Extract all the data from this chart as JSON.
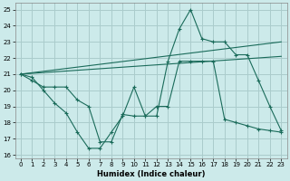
{
  "xlabel": "Humidex (Indice chaleur)",
  "background_color": "#cceaea",
  "grid_color": "#aacccc",
  "line_color": "#1a6b5a",
  "xlim": [
    -0.5,
    23.5
  ],
  "ylim": [
    15.8,
    25.4
  ],
  "yticks": [
    16,
    17,
    18,
    19,
    20,
    21,
    22,
    23,
    24,
    25
  ],
  "xticks": [
    0,
    1,
    2,
    3,
    4,
    5,
    6,
    7,
    8,
    9,
    10,
    11,
    12,
    13,
    14,
    15,
    16,
    17,
    18,
    19,
    20,
    21,
    22,
    23
  ],
  "series1_x": [
    0,
    1,
    2,
    3,
    4,
    5,
    6,
    7,
    8,
    9,
    10,
    11,
    12,
    13,
    14,
    15,
    16,
    17,
    18,
    19,
    20,
    21,
    22,
    23
  ],
  "series1_y": [
    21.0,
    20.8,
    20.0,
    19.2,
    18.6,
    17.4,
    16.4,
    16.4,
    17.4,
    18.4,
    20.2,
    18.4,
    18.4,
    21.8,
    23.8,
    25.0,
    23.2,
    23.0,
    23.0,
    22.2,
    22.2,
    20.6,
    19.0,
    17.5
  ],
  "series2_x": [
    0,
    1,
    2,
    3,
    4,
    5,
    6,
    7,
    8,
    9,
    10,
    11,
    12,
    13,
    14,
    15,
    16,
    17,
    18,
    19,
    20,
    21,
    22,
    23
  ],
  "series2_y": [
    21.0,
    20.6,
    20.2,
    20.2,
    20.2,
    19.4,
    19.0,
    16.8,
    16.8,
    18.5,
    18.4,
    18.4,
    19.0,
    19.0,
    21.8,
    21.8,
    21.8,
    21.8,
    18.2,
    18.0,
    17.8,
    17.6,
    17.5,
    17.4
  ],
  "trend1_x": [
    0,
    23
  ],
  "trend1_y": [
    21.0,
    22.1
  ],
  "trend2_x": [
    0,
    23
  ],
  "trend2_y": [
    21.0,
    23.0
  ]
}
